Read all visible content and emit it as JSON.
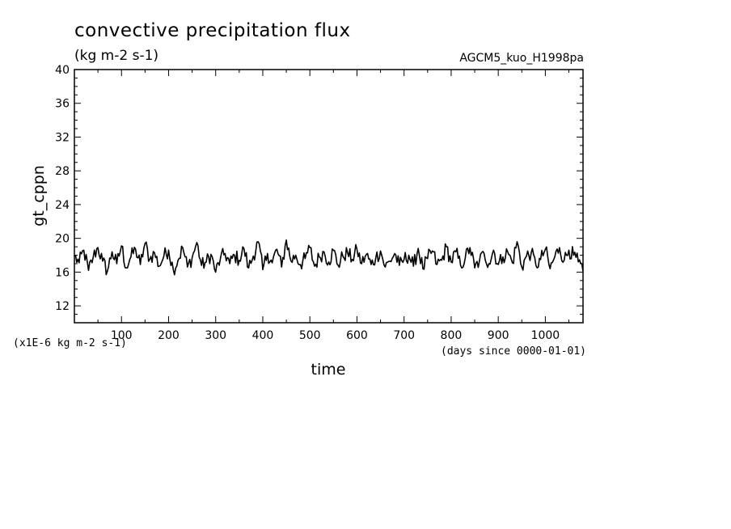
{
  "chart_data": {
    "type": "line",
    "title": "convective precipitation flux",
    "units": "(kg m-2 s-1)",
    "source": "AGCM5_kuo_H1998pa",
    "xlabel": "time",
    "x_units_note": "(days since 0000-01-01)",
    "ylabel": "gt_cppn",
    "y_scale_note": "(x1E-6 kg m-2 s-1)",
    "xlim": [
      0,
      1080
    ],
    "ylim": [
      10,
      40
    ],
    "xticks": [
      100,
      200,
      300,
      400,
      500,
      600,
      700,
      800,
      900,
      1000
    ],
    "yticks": [
      12,
      16,
      20,
      24,
      28,
      32,
      36,
      40
    ],
    "grid": false,
    "legend": "none",
    "line_color": "#000000",
    "series": [
      {
        "x": [
          0,
          10,
          20,
          30,
          40,
          50,
          60,
          70,
          80,
          90,
          100,
          110,
          120,
          130,
          140,
          150,
          160,
          170,
          180,
          190,
          200,
          210,
          220,
          230,
          240,
          250,
          260,
          270,
          280,
          290,
          300,
          310,
          320,
          330,
          340,
          350,
          360,
          370,
          380,
          390,
          400,
          410,
          420,
          430,
          440,
          450,
          460,
          470,
          480,
          490,
          500,
          510,
          520,
          530,
          540,
          550,
          560,
          570,
          580,
          590,
          600,
          610,
          620,
          630,
          640,
          650,
          660,
          670,
          680,
          690,
          700,
          710,
          720,
          730,
          740,
          750,
          760,
          770,
          780,
          790,
          800,
          810,
          820,
          830,
          840,
          850,
          860,
          870,
          880,
          890,
          900,
          910,
          920,
          930,
          940,
          950,
          960,
          970,
          980,
          990,
          1000,
          1010,
          1020,
          1030,
          1040,
          1050,
          1060,
          1070,
          1080
        ],
        "values": [
          17.9,
          17.1,
          18.6,
          16.2,
          17.8,
          18.9,
          17.3,
          16.1,
          18.4,
          17.0,
          19.1,
          16.5,
          17.8,
          18.7,
          16.9,
          19.4,
          17.5,
          18.3,
          16.7,
          17.9,
          18.6,
          16.3,
          17.4,
          18.9,
          16.6,
          17.7,
          19.5,
          16.8,
          17.2,
          18.1,
          16.0,
          17.6,
          18.2,
          17.0,
          18.0,
          17.4,
          18.8,
          16.5,
          17.9,
          19.6,
          16.3,
          18.2,
          17.1,
          18.7,
          16.6,
          19.8,
          17.3,
          18.0,
          16.9,
          17.6,
          18.9,
          16.7,
          17.8,
          18.4,
          17.2,
          18.6,
          16.8,
          17.9,
          18.3,
          17.5,
          18.7,
          17.0,
          18.1,
          16.9,
          17.7,
          18.5,
          16.6,
          17.3,
          18.2,
          16.8,
          17.5,
          18.0,
          16.7,
          18.8,
          16.4,
          17.6,
          18.5,
          16.9,
          17.4,
          19.0,
          17.2,
          18.4,
          16.8,
          17.7,
          18.9,
          16.5,
          17.3,
          18.2,
          17.0,
          18.6,
          16.9,
          17.8,
          18.4,
          17.1,
          19.6,
          16.6,
          17.9,
          18.3,
          16.8,
          17.5,
          18.7,
          16.4,
          17.8,
          18.9,
          17.4,
          18.6,
          18.0,
          17.2,
          16.1
        ]
      }
    ]
  }
}
